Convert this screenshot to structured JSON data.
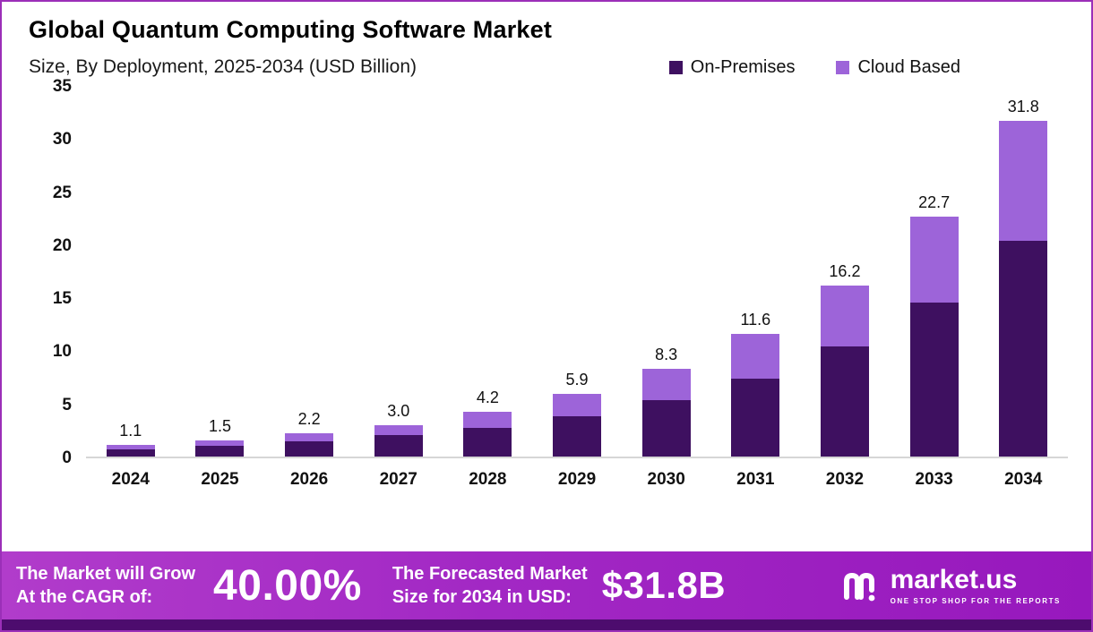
{
  "meta": {
    "title": "Global Quantum Computing Software Market",
    "subtitle": "Size, By Deployment, 2025-2034 (USD Billion)"
  },
  "legend": [
    {
      "label": "On-Premises",
      "color": "#3e1060"
    },
    {
      "label": "Cloud Based",
      "color": "#9d64d9"
    }
  ],
  "chart_data": {
    "type": "bar",
    "stacked": true,
    "title": "Global Quantum Computing Software Market",
    "subtitle": "Size, By Deployment, 2025-2034 (USD Billion)",
    "xlabel": "",
    "ylabel": "",
    "grid": false,
    "legend_position": "top-right",
    "ylim": [
      0,
      35
    ],
    "yticks": [
      0,
      5,
      10,
      15,
      20,
      25,
      30,
      35
    ],
    "categories": [
      "2024",
      "2025",
      "2026",
      "2027",
      "2028",
      "2029",
      "2030",
      "2031",
      "2032",
      "2033",
      "2034"
    ],
    "series": [
      {
        "name": "On-Premises",
        "color": "#3e1060",
        "values": [
          0.7,
          1.0,
          1.4,
          2.0,
          2.7,
          3.8,
          5.3,
          7.4,
          10.4,
          14.6,
          20.4
        ]
      },
      {
        "name": "Cloud Based",
        "color": "#9d64d9",
        "values": [
          0.4,
          0.5,
          0.8,
          1.0,
          1.5,
          2.1,
          3.0,
          4.2,
          5.8,
          8.1,
          11.4
        ]
      }
    ],
    "totals": [
      1.1,
      1.5,
      2.2,
      3.0,
      4.2,
      5.9,
      8.3,
      11.6,
      16.2,
      22.7,
      31.8
    ],
    "total_labels": [
      "1.1",
      "1.5",
      "2.2",
      "3.0",
      "4.2",
      "5.9",
      "8.3",
      "11.6",
      "16.2",
      "22.7",
      "31.8"
    ]
  },
  "footer": {
    "cagr_label_line1": "The Market will Grow",
    "cagr_label_line2": "At the CAGR of:",
    "cagr_value": "40.00%",
    "forecast_label_line1": "The Forecasted Market",
    "forecast_label_line2": "Size for 2034 in USD:",
    "forecast_value": "$31.8B",
    "brand": "market.us",
    "brand_tagline": "ONE STOP SHOP FOR THE REPORTS"
  }
}
